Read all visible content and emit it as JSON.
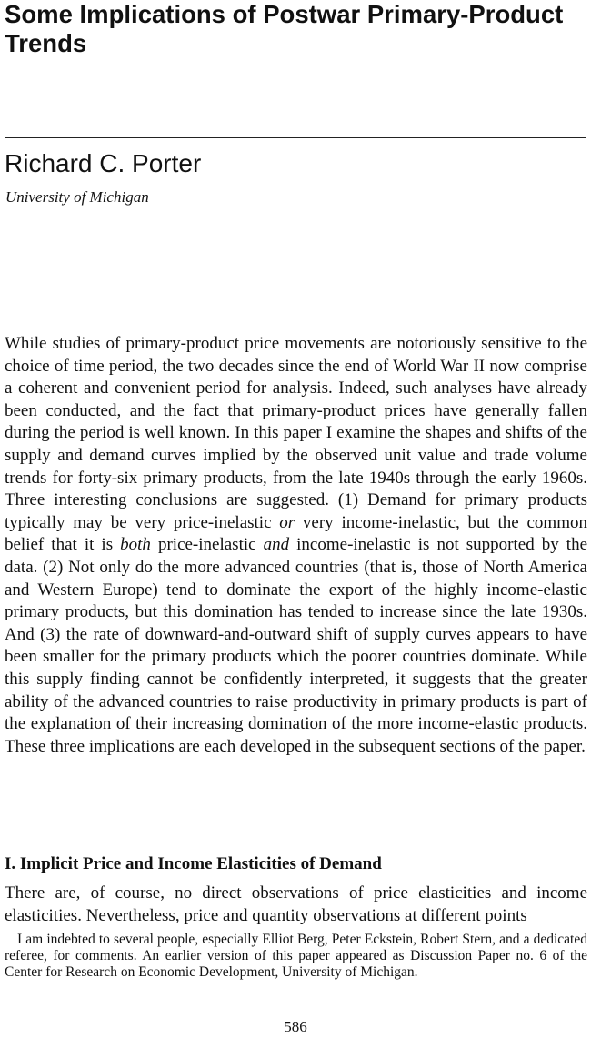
{
  "title": "Some Implications of Postwar Primary-Product Trends",
  "author": "Richard C. Porter",
  "affiliation": "University of Michigan",
  "abstract": {
    "p1": "While studies of primary-product price movements are notoriously sensitive to the choice of time period, the two decades since the end of World War II now comprise a coherent and convenient period for analysis. Indeed, such analyses have already been conducted, and the fact that primary-product prices have generally fallen during the period is well known. In this paper I examine the shapes and shifts of the supply and demand curves implied by the observed unit value and trade volume trends for forty-six primary products, from the late 1940s through the early 1960s. Three interesting conclusions are suggested. (1) Demand for primary products typically may be very price-inelastic ",
    "em1": "or",
    "p2": " very income-inelastic, but the common belief that it is ",
    "em2": "both",
    "p3": " price-inelastic ",
    "em3": "and",
    "p4": " income-inelastic is not supported by the data. (2) Not only do the more advanced countries (that is, those of North America and Western Europe) tend to dominate the export of the highly income-elastic primary products, but this domination has tended to increase since the late 1930s. And (3) the rate of downward-and-outward shift of supply curves appears to have been smaller for the primary products which the poorer countries dominate. While this supply finding cannot be confidently interpreted, it suggests that the greater ability of the advanced countries to raise productivity in primary products is part of the explanation of their increasing domination of the more income-elastic products. These three implications are each developed in the subsequent sections of the paper."
  },
  "section_heading": "I. Implicit Price and Income Elasticities of Demand",
  "intro_text": "There are, of course, no direct observations of price elasticities and income elasticities. Nevertheless, price and quantity observations at different points",
  "footnote": "I am indebted to several people, especially Elliot Berg, Peter Eckstein, Robert Stern, and a dedicated referee, for comments. An earlier version of this paper appeared as Discussion Paper no. 6 of the Center for Research on Economic Development, University of Michigan.",
  "page_number": "586"
}
